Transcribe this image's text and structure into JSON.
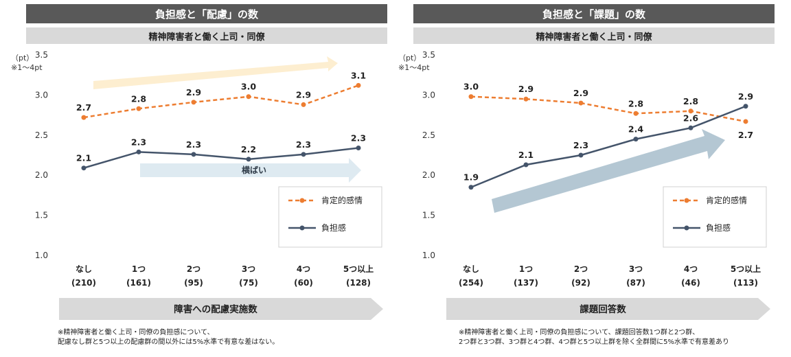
{
  "colors": {
    "positive": "#ed7d31",
    "burden": "#44546a",
    "title_bg": "#595959",
    "subtitle_bg": "#d9d9d9",
    "axis_arrow": "#d9d9d9",
    "flat_arrow": "#deeaf1",
    "rise_arrow": "#b4c7d3",
    "left_up_arrow": "#fdeed0"
  },
  "chart_data": [
    {
      "type": "line",
      "title": "負担感と「配慮」の数",
      "subtitle": "精神障害者と働く上司・同僚",
      "unit_label": "（pt）",
      "range_note": "※1～4pt",
      "ylim": [
        1.0,
        3.5
      ],
      "yticks": [
        "1.0",
        "1.5",
        "2.0",
        "2.5",
        "3.0",
        "3.5"
      ],
      "categories": [
        "なし",
        "1つ",
        "2つ",
        "3つ",
        "4つ",
        "5つ以上"
      ],
      "counts": [
        "(210)",
        "(161)",
        "(95)",
        "(75)",
        "(60)",
        "(128)"
      ],
      "xlabel": "障害への配慮実施数",
      "series": [
        {
          "name": "肯定的感情",
          "style": "dashed",
          "values": [
            2.72,
            2.83,
            2.91,
            2.98,
            2.88,
            3.12
          ],
          "labels": [
            "2.7",
            "2.8",
            "2.9",
            "3.0",
            "2.9",
            "3.1"
          ]
        },
        {
          "name": "負担感",
          "style": "solid",
          "values": [
            2.09,
            2.29,
            2.26,
            2.2,
            2.26,
            2.34
          ],
          "labels": [
            "2.1",
            "2.3",
            "2.3",
            "2.2",
            "2.3",
            "2.3"
          ]
        }
      ],
      "annotations": [
        {
          "text": "横ばい"
        }
      ],
      "footnote": [
        "※精神障害者と働く上司・同僚の負担感について、",
        "配慮なし群と5つ以上の配慮群の間以外には5%水準で有意な差はない。"
      ]
    },
    {
      "type": "line",
      "title": "負担感と「課題」の数",
      "subtitle": "精神障害者と働く上司・同僚",
      "unit_label": "（pt）",
      "range_note": "※1～4pt",
      "ylim": [
        1.0,
        3.5
      ],
      "yticks": [
        "1.0",
        "1.5",
        "2.0",
        "2.5",
        "3.0",
        "3.5"
      ],
      "categories": [
        "なし",
        "1つ",
        "2つ",
        "3つ",
        "4つ",
        "5つ以上"
      ],
      "counts": [
        "(254)",
        "(137)",
        "(92)",
        "(87)",
        "(46)",
        "(113)"
      ],
      "xlabel": "課題回答数",
      "series": [
        {
          "name": "肯定的感情",
          "style": "dashed",
          "values": [
            2.98,
            2.95,
            2.9,
            2.77,
            2.8,
            2.67
          ],
          "labels": [
            "3.0",
            "2.9",
            "2.9",
            "2.8",
            "2.8",
            "2.7"
          ]
        },
        {
          "name": "負担感",
          "style": "solid",
          "values": [
            1.85,
            2.13,
            2.25,
            2.45,
            2.59,
            2.86
          ],
          "labels": [
            "1.9",
            "2.1",
            "2.3",
            "2.4",
            "2.6",
            "2.9"
          ]
        }
      ],
      "annotations": [],
      "footnote": [
        "※精神障害者と働く上司・同僚の負担感について、課題回答数1つ群と2つ群、",
        "2つ群と3つ群、3つ群と4つ群、4つ群と5つ以上群を除く全群間に5%水準で有意差あり"
      ]
    }
  ]
}
